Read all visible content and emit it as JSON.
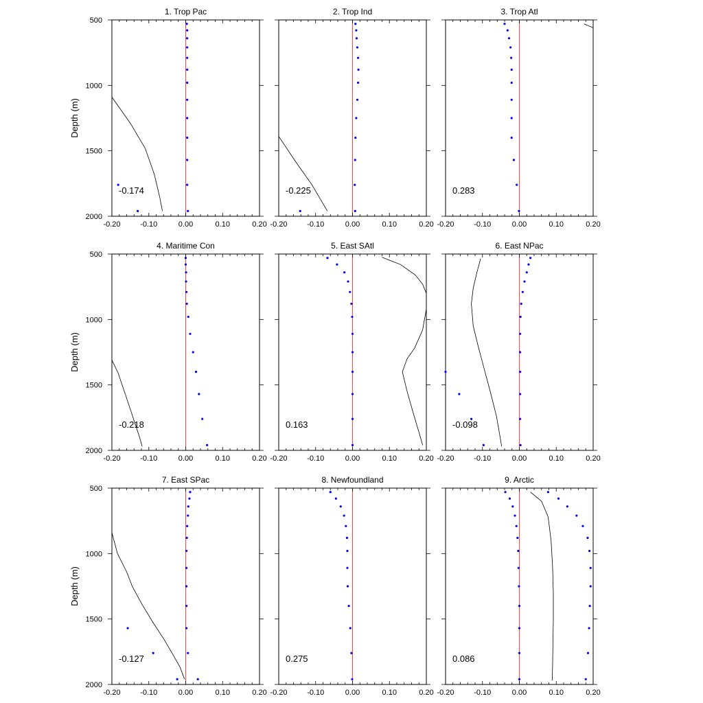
{
  "chart_data": {
    "type": "panel-grid",
    "layout": {
      "rows": 3,
      "cols": 3
    },
    "shared": {
      "xlim": [
        -0.2,
        0.2
      ],
      "ylim": [
        500,
        2000
      ],
      "y_inverted": true,
      "xticks": [
        -0.2,
        -0.1,
        0.0,
        0.1,
        0.2
      ],
      "xtick_labels": [
        "-0.20",
        "-0.10",
        "0.00",
        "0.10",
        "0.20"
      ],
      "yticks": [
        500,
        1000,
        1500,
        2000
      ],
      "ytick_labels": [
        "500",
        "1000",
        "1500",
        "2000"
      ],
      "ylabel": "Depth (m)",
      "zero_line_color": "#ff4444",
      "dot_color": "#0000ee",
      "line_color": "#000000"
    },
    "panels": [
      {
        "title": "1. Trop Pac",
        "annotation": "-0.174",
        "dots": [
          [
            0.003,
            530
          ],
          [
            0.004,
            580
          ],
          [
            0.004,
            640
          ],
          [
            0.004,
            710
          ],
          [
            0.004,
            790
          ],
          [
            0.004,
            880
          ],
          [
            0.004,
            980
          ],
          [
            0.004,
            1110
          ],
          [
            0.004,
            1250
          ],
          [
            0.004,
            1400
          ],
          [
            0.004,
            1570
          ],
          [
            0.004,
            1760
          ],
          [
            -0.183,
            1760
          ],
          [
            0.006,
            1960
          ],
          [
            -0.13,
            1960
          ]
        ],
        "line": [
          [
            -0.2,
            1090
          ],
          [
            -0.15,
            1290
          ],
          [
            -0.11,
            1480
          ],
          [
            -0.085,
            1680
          ],
          [
            -0.07,
            1860
          ],
          [
            -0.063,
            1960
          ]
        ]
      },
      {
        "title": "2. Trop Ind",
        "annotation": "-0.225",
        "dots": [
          [
            0.008,
            530
          ],
          [
            0.01,
            580
          ],
          [
            0.011,
            640
          ],
          [
            0.013,
            710
          ],
          [
            0.015,
            790
          ],
          [
            0.016,
            880
          ],
          [
            0.015,
            980
          ],
          [
            0.013,
            1110
          ],
          [
            0.01,
            1250
          ],
          [
            0.008,
            1400
          ],
          [
            0.007,
            1570
          ],
          [
            0.006,
            1760
          ],
          [
            0.007,
            1960
          ],
          [
            -0.142,
            1960
          ]
        ],
        "line": [
          [
            -0.2,
            1390
          ],
          [
            -0.155,
            1580
          ],
          [
            -0.11,
            1760
          ],
          [
            -0.085,
            1880
          ],
          [
            -0.068,
            1960
          ]
        ]
      },
      {
        "title": "3. Trop Atl",
        "annotation": "0.283",
        "dots": [
          [
            -0.04,
            530
          ],
          [
            -0.032,
            580
          ],
          [
            -0.028,
            640
          ],
          [
            -0.024,
            710
          ],
          [
            -0.022,
            790
          ],
          [
            -0.021,
            880
          ],
          [
            -0.021,
            980
          ],
          [
            -0.021,
            1110
          ],
          [
            -0.021,
            1250
          ],
          [
            -0.021,
            1400
          ],
          [
            -0.015,
            1570
          ],
          [
            -0.007,
            1760
          ],
          [
            -0.001,
            1960
          ]
        ],
        "line": [
          [
            0.175,
            530
          ],
          [
            0.2,
            560
          ]
        ]
      },
      {
        "title": "4. Maritime Con",
        "annotation": "-0.218",
        "dots": [
          [
            0.0,
            530
          ],
          [
            0.0,
            580
          ],
          [
            0.001,
            640
          ],
          [
            0.001,
            710
          ],
          [
            0.002,
            790
          ],
          [
            0.003,
            880
          ],
          [
            0.007,
            980
          ],
          [
            0.012,
            1110
          ],
          [
            0.02,
            1250
          ],
          [
            0.028,
            1400
          ],
          [
            0.036,
            1570
          ],
          [
            0.045,
            1760
          ],
          [
            0.058,
            1960
          ]
        ],
        "line": [
          [
            -0.2,
            1310
          ],
          [
            -0.183,
            1410
          ],
          [
            -0.165,
            1560
          ],
          [
            -0.145,
            1730
          ],
          [
            -0.125,
            1900
          ],
          [
            -0.118,
            1970
          ]
        ]
      },
      {
        "title": "5. East SAtl",
        "annotation": "0.163",
        "dots": [
          [
            -0.068,
            530
          ],
          [
            -0.042,
            580
          ],
          [
            -0.022,
            640
          ],
          [
            -0.012,
            710
          ],
          [
            -0.007,
            790
          ],
          [
            -0.003,
            880
          ],
          [
            -0.001,
            980
          ],
          [
            0.0,
            1110
          ],
          [
            0.0,
            1250
          ],
          [
            0.0,
            1400
          ],
          [
            0.0,
            1570
          ],
          [
            0.0,
            1760
          ],
          [
            0.0,
            1960
          ]
        ],
        "line": [
          [
            0.08,
            525
          ],
          [
            0.13,
            580
          ],
          [
            0.17,
            660
          ],
          [
            0.19,
            730
          ],
          [
            0.2,
            800
          ],
          [
            0.2,
            920
          ],
          [
            0.19,
            1080
          ],
          [
            0.168,
            1220
          ],
          [
            0.148,
            1300
          ],
          [
            0.135,
            1400
          ],
          [
            0.148,
            1550
          ],
          [
            0.165,
            1720
          ],
          [
            0.182,
            1880
          ],
          [
            0.19,
            1960
          ]
        ]
      },
      {
        "title": "6. East NPac",
        "annotation": "-0.098",
        "dots": [
          [
            0.03,
            530
          ],
          [
            0.025,
            580
          ],
          [
            0.02,
            640
          ],
          [
            0.014,
            710
          ],
          [
            0.009,
            790
          ],
          [
            0.005,
            880
          ],
          [
            0.003,
            980
          ],
          [
            0.002,
            1110
          ],
          [
            0.002,
            1250
          ],
          [
            0.002,
            1400
          ],
          [
            -0.2,
            1400
          ],
          [
            0.002,
            1570
          ],
          [
            -0.163,
            1570
          ],
          [
            0.002,
            1760
          ],
          [
            -0.13,
            1760
          ],
          [
            0.003,
            1960
          ],
          [
            -0.097,
            1960
          ]
        ],
        "line": [
          [
            -0.105,
            535
          ],
          [
            -0.115,
            640
          ],
          [
            -0.125,
            760
          ],
          [
            -0.13,
            880
          ],
          [
            -0.125,
            1050
          ],
          [
            -0.112,
            1200
          ],
          [
            -0.095,
            1380
          ],
          [
            -0.078,
            1560
          ],
          [
            -0.062,
            1740
          ],
          [
            -0.052,
            1900
          ],
          [
            -0.048,
            1970
          ]
        ]
      },
      {
        "title": "7. East SPac",
        "annotation": "-0.127",
        "dots": [
          [
            0.012,
            530
          ],
          [
            0.01,
            580
          ],
          [
            0.007,
            640
          ],
          [
            0.006,
            710
          ],
          [
            0.004,
            790
          ],
          [
            0.003,
            880
          ],
          [
            0.002,
            980
          ],
          [
            0.002,
            1110
          ],
          [
            0.002,
            1250
          ],
          [
            0.002,
            1400
          ],
          [
            0.002,
            1570
          ],
          [
            -0.157,
            1570
          ],
          [
            0.006,
            1760
          ],
          [
            -0.088,
            1760
          ],
          [
            0.033,
            1960
          ],
          [
            -0.023,
            1960
          ]
        ],
        "line": [
          [
            -0.2,
            840
          ],
          [
            -0.185,
            1000
          ],
          [
            -0.16,
            1140
          ],
          [
            -0.145,
            1250
          ],
          [
            -0.12,
            1380
          ],
          [
            -0.09,
            1520
          ],
          [
            -0.06,
            1650
          ],
          [
            -0.035,
            1770
          ],
          [
            -0.015,
            1870
          ],
          [
            -0.003,
            1960
          ]
        ]
      },
      {
        "title": "8. Newfoundland",
        "annotation": "0.275",
        "dots": [
          [
            -0.06,
            530
          ],
          [
            -0.045,
            580
          ],
          [
            -0.032,
            640
          ],
          [
            -0.023,
            710
          ],
          [
            -0.018,
            790
          ],
          [
            -0.015,
            880
          ],
          [
            -0.014,
            980
          ],
          [
            -0.014,
            1110
          ],
          [
            -0.013,
            1250
          ],
          [
            -0.01,
            1400
          ],
          [
            -0.006,
            1570
          ],
          [
            -0.003,
            1760
          ],
          [
            -0.001,
            1960
          ]
        ],
        "line": []
      },
      {
        "title": "9. Arctic",
        "annotation": "0.086",
        "dots": [
          [
            -0.038,
            530
          ],
          [
            -0.026,
            580
          ],
          [
            -0.018,
            640
          ],
          [
            -0.012,
            710
          ],
          [
            -0.008,
            790
          ],
          [
            -0.005,
            880
          ],
          [
            -0.003,
            980
          ],
          [
            -0.002,
            1110
          ],
          [
            -0.001,
            1250
          ],
          [
            0.0,
            1400
          ],
          [
            0.0,
            1570
          ],
          [
            0.0,
            1760
          ],
          [
            0.0,
            1960
          ],
          [
            0.078,
            530
          ],
          [
            0.106,
            580
          ],
          [
            0.13,
            640
          ],
          [
            0.155,
            710
          ],
          [
            0.172,
            790
          ],
          [
            0.185,
            880
          ],
          [
            0.19,
            980
          ],
          [
            0.193,
            1110
          ],
          [
            0.193,
            1250
          ],
          [
            0.191,
            1400
          ],
          [
            0.189,
            1570
          ],
          [
            0.186,
            1760
          ],
          [
            0.18,
            1960
          ]
        ],
        "line": [
          [
            0.03,
            530
          ],
          [
            0.06,
            600
          ],
          [
            0.078,
            720
          ],
          [
            0.086,
            900
          ],
          [
            0.09,
            1100
          ],
          [
            0.092,
            1300
          ],
          [
            0.092,
            1500
          ],
          [
            0.091,
            1700
          ],
          [
            0.09,
            1860
          ],
          [
            0.089,
            1970
          ]
        ]
      }
    ]
  }
}
